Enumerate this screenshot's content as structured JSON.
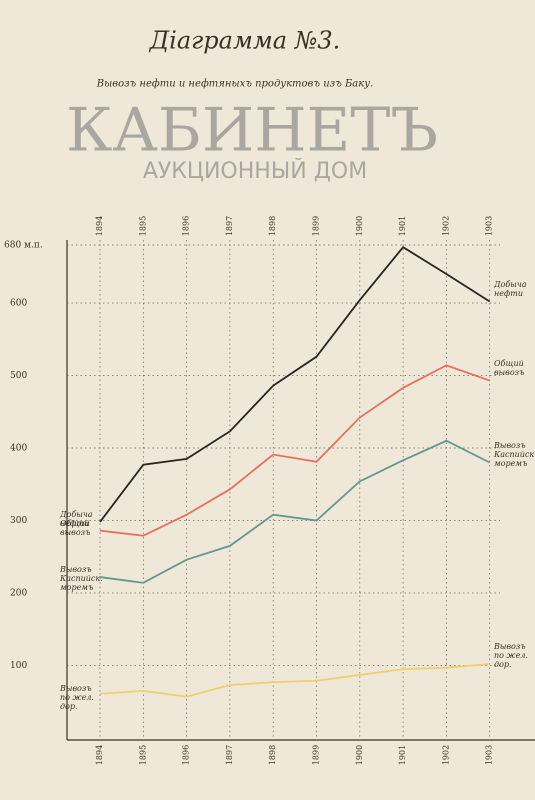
{
  "chart_data": {
    "type": "line",
    "title": "Діаграмма №3.",
    "subtitle": "Вывозъ нефти и нефтяныхъ продуктовъ изъ Баку.",
    "categories": [
      "1894",
      "1895",
      "1896",
      "1897",
      "1898",
      "1899",
      "1900",
      "1901",
      "1902",
      "1903"
    ],
    "series": [
      {
        "name": "Добыча нефти",
        "color": "#2a2420",
        "values": [
          298,
          377,
          385,
          423,
          486,
          526,
          604,
          677,
          640,
          602
        ]
      },
      {
        "name": "Общий вывозъ",
        "color": "#e8705a",
        "values": [
          286,
          279,
          308,
          343,
          391,
          381,
          442,
          483,
          514,
          493
        ]
      },
      {
        "name": "Вывозъ Каспийск. моремъ",
        "color": "#5f9a8e",
        "values": [
          222,
          214,
          246,
          265,
          308,
          300,
          354,
          383,
          410,
          380
        ]
      },
      {
        "name": "Вывозъ по жел. дор.",
        "color": "#f0cf72",
        "values": [
          61,
          65,
          57,
          73,
          77,
          79,
          87,
          95,
          97,
          102
        ]
      }
    ],
    "ylim": [
      0,
      680
    ],
    "yticks": [
      100,
      200,
      300,
      400,
      500,
      600,
      {
        "value": 680,
        "label": "680 м.п."
      }
    ],
    "grid": true
  },
  "watermark": {
    "line1": "КАБИНЕТЪ",
    "line2": "АУКЦИОННЫЙ ДОМ"
  }
}
